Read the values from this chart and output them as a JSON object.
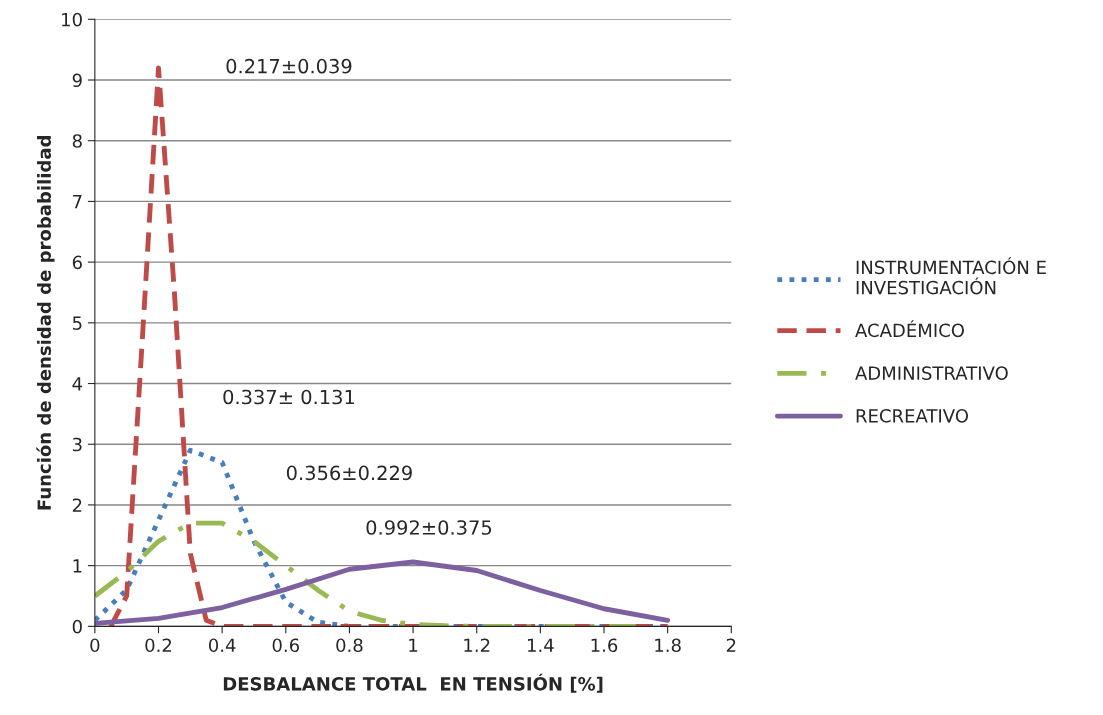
{
  "chart_data": {
    "type": "line",
    "xlabel": "DESBALANCE TOTAL  EN TENSIÓN [%]",
    "ylabel": "Función de densidad de probabilidad",
    "xlim": [
      0,
      2
    ],
    "xticks": [
      0,
      0.2,
      0.4,
      0.6,
      0.8,
      1,
      1.2,
      1.4,
      1.6,
      1.8,
      2
    ],
    "ylim": [
      0,
      10
    ],
    "yticks": [
      0,
      1,
      2,
      3,
      4,
      5,
      6,
      7,
      8,
      9,
      10
    ],
    "grid": "y",
    "legend": "right",
    "marker": "none",
    "series": [
      {
        "name": "INSTRUMENTACIÓN E\nINVESTIGACIÓN",
        "color": "#4a7ebb",
        "line_style": "dotted",
        "x": [
          0,
          0.1,
          0.2,
          0.3,
          0.4,
          0.5,
          0.6,
          0.7,
          0.8,
          1.0,
          1.2,
          1.4,
          1.6,
          1.8
        ],
        "values": [
          0.1,
          0.6,
          1.75,
          2.9,
          2.7,
          1.4,
          0.4,
          0.07,
          0,
          0,
          0,
          0,
          0,
          0
        ]
      },
      {
        "name": "ACADÉMICO",
        "color": "#be4b48",
        "line_style": "dashed",
        "x": [
          0.05,
          0.1,
          0.15,
          0.2,
          0.25,
          0.3,
          0.35,
          0.4,
          0.6,
          0.8,
          1.0,
          1.2,
          1.4,
          1.6,
          1.8
        ],
        "values": [
          0,
          0.5,
          4.8,
          9.2,
          5.5,
          1.2,
          0.1,
          0,
          0,
          0,
          0,
          0,
          0,
          0,
          0
        ]
      },
      {
        "name": "ADMINISTRATIVO",
        "color": "#98b954",
        "line_style": "dashdot",
        "x": [
          0,
          0.1,
          0.2,
          0.3,
          0.4,
          0.5,
          0.6,
          0.7,
          0.8,
          0.9,
          1.0,
          1.1,
          1.2,
          1.4,
          1.7
        ],
        "values": [
          0.5,
          0.9,
          1.4,
          1.7,
          1.7,
          1.4,
          1.0,
          0.6,
          0.25,
          0.1,
          0.03,
          0.01,
          0,
          0,
          0
        ]
      },
      {
        "name": "RECREATIVO",
        "color": "#7d60a0",
        "line_style": "solid",
        "x": [
          0,
          0.2,
          0.4,
          0.6,
          0.8,
          1.0,
          1.2,
          1.4,
          1.6,
          1.8
        ],
        "values": [
          0.05,
          0.13,
          0.31,
          0.61,
          0.94,
          1.06,
          0.92,
          0.59,
          0.29,
          0.1
        ]
      }
    ],
    "annotations": [
      "0.217±0.039",
      "0.337± 0.131",
      "0.356±0.229",
      "0.992±0.375"
    ]
  }
}
